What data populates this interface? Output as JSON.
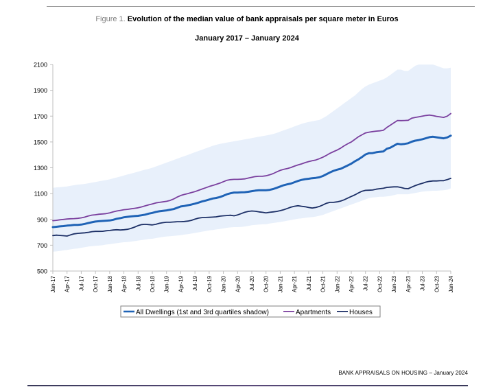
{
  "figure": {
    "prefix": "Figure 1.",
    "title": "Evolution of the median value of bank appraisals per square meter in Euros",
    "subtitle": "January 2017 – January 2024"
  },
  "footer": "BANK APPRAISALS ON HOUSING – January 2024",
  "colors": {
    "all_dwellings": "#1f63b6",
    "apartments": "#7a3f9e",
    "houses": "#1c2f66",
    "quartile_band": "#e8f0fb",
    "axis": "#bfbfbf"
  },
  "chart_data": {
    "type": "line",
    "ylim": [
      500,
      2100
    ],
    "yticks": [
      500,
      700,
      900,
      1100,
      1300,
      1500,
      1700,
      1900,
      2100
    ],
    "x_tick_labels": [
      "Jan-17",
      "Apr-17",
      "Jul-17",
      "Oct-17",
      "Jan-18",
      "Apr-18",
      "Jul-18",
      "Oct-18",
      "Jan-19",
      "Apr-19",
      "Jul-19",
      "Oct-19",
      "Jan-20",
      "Apr-20",
      "Jul-20",
      "Oct-20",
      "Jan-21",
      "Apr-21",
      "Jul-21",
      "Oct-21",
      "Jan-22",
      "Apr-22",
      "Jul-22",
      "Oct-22",
      "Jan-23",
      "Apr-23",
      "Jul-23",
      "Oct-23",
      "Jan-24"
    ],
    "legend_position": "bottom",
    "grid": false,
    "series": [
      {
        "name": "All Dwellings (1st and 3rd quartiles shadow)",
        "color_key": "all_dwellings",
        "values": [
          840,
          843,
          846,
          848,
          852,
          854,
          857,
          858,
          860,
          865,
          872,
          878,
          883,
          886,
          888,
          890,
          892,
          897,
          905,
          910,
          916,
          920,
          923,
          926,
          928,
          932,
          937,
          945,
          950,
          958,
          963,
          966,
          970,
          975,
          980,
          990,
          1000,
          1004,
          1010,
          1015,
          1022,
          1030,
          1039,
          1046,
          1054,
          1062,
          1066,
          1073,
          1083,
          1095,
          1102,
          1108,
          1108,
          1110,
          1111,
          1114,
          1119,
          1123,
          1126,
          1126,
          1126,
          1129,
          1135,
          1145,
          1155,
          1165,
          1172,
          1178,
          1188,
          1198,
          1206,
          1212,
          1215,
          1219,
          1222,
          1226,
          1236,
          1250,
          1264,
          1276,
          1285,
          1292,
          1305,
          1318,
          1332,
          1350,
          1365,
          1383,
          1403,
          1413,
          1414,
          1420,
          1424,
          1426,
          1447,
          1456,
          1471,
          1486,
          1482,
          1485,
          1490,
          1502,
          1510,
          1515,
          1521,
          1529,
          1537,
          1540,
          1536,
          1532,
          1528,
          1535,
          1549
        ]
      },
      {
        "name": "Apartments",
        "color_key": "apartments",
        "values": [
          890,
          893,
          897,
          900,
          903,
          905,
          906,
          908,
          912,
          918,
          927,
          933,
          936,
          940,
          942,
          945,
          950,
          958,
          965,
          970,
          975,
          978,
          982,
          986,
          990,
          997,
          1005,
          1013,
          1020,
          1028,
          1032,
          1036,
          1040,
          1047,
          1058,
          1073,
          1085,
          1093,
          1100,
          1108,
          1115,
          1125,
          1135,
          1145,
          1155,
          1163,
          1172,
          1181,
          1192,
          1203,
          1208,
          1210,
          1210,
          1212,
          1214,
          1220,
          1226,
          1232,
          1234,
          1234,
          1238,
          1245,
          1255,
          1268,
          1280,
          1288,
          1294,
          1302,
          1313,
          1322,
          1330,
          1340,
          1348,
          1354,
          1360,
          1370,
          1382,
          1396,
          1412,
          1425,
          1437,
          1452,
          1470,
          1486,
          1500,
          1520,
          1540,
          1555,
          1570,
          1576,
          1580,
          1584,
          1586,
          1590,
          1612,
          1630,
          1648,
          1666,
          1665,
          1666,
          1668,
          1684,
          1690,
          1695,
          1700,
          1705,
          1708,
          1704,
          1698,
          1694,
          1690,
          1700,
          1720
        ]
      },
      {
        "name": "Houses",
        "color_key": "houses",
        "values": [
          775,
          778,
          776,
          774,
          771,
          780,
          788,
          792,
          794,
          796,
          800,
          805,
          807,
          807,
          808,
          812,
          814,
          818,
          820,
          818,
          820,
          823,
          830,
          840,
          852,
          860,
          862,
          860,
          857,
          862,
          870,
          875,
          878,
          878,
          880,
          882,
          882,
          884,
          887,
          893,
          902,
          910,
          914,
          915,
          916,
          918,
          920,
          925,
          928,
          930,
          932,
          928,
          935,
          945,
          955,
          962,
          965,
          963,
          958,
          955,
          950,
          955,
          958,
          962,
          968,
          975,
          985,
          995,
          1002,
          1006,
          1002,
          998,
          992,
          988,
          992,
          1000,
          1012,
          1025,
          1032,
          1032,
          1036,
          1042,
          1052,
          1065,
          1078,
          1090,
          1105,
          1118,
          1125,
          1126,
          1128,
          1134,
          1138,
          1141,
          1148,
          1150,
          1152,
          1152,
          1147,
          1140,
          1138,
          1150,
          1162,
          1172,
          1180,
          1189,
          1195,
          1198,
          1198,
          1200,
          1200,
          1208,
          1218
        ]
      },
      {
        "name": "1st quartile",
        "values": [
          650,
          652,
          655,
          660,
          663,
          668,
          672,
          675,
          680,
          685,
          690,
          693,
          695,
          697,
          700,
          705,
          708,
          712,
          716,
          720,
          723,
          725,
          728,
          732,
          736,
          740,
          744,
          748,
          750,
          755,
          760,
          764,
          768,
          770,
          772,
          775,
          778,
          782,
          786,
          790,
          795,
          800,
          805,
          810,
          815,
          818,
          822,
          826,
          830,
          835,
          838,
          840,
          840,
          842,
          845,
          850,
          855,
          858,
          860,
          862,
          863,
          868,
          872,
          876,
          880,
          885,
          890,
          895,
          900,
          905,
          908,
          912,
          915,
          918,
          922,
          928,
          935,
          945,
          955,
          965,
          975,
          985,
          995,
          1005,
          1015,
          1025,
          1035,
          1045,
          1055,
          1065,
          1070,
          1072,
          1075,
          1075,
          1078,
          1082,
          1088,
          1095,
          1095,
          1095,
          1095,
          1100,
          1105,
          1110,
          1115,
          1118,
          1120,
          1122,
          1122,
          1124,
          1126,
          1130,
          1140
        ]
      },
      {
        "name": "3rd quartile",
        "values": [
          1145,
          1148,
          1150,
          1152,
          1155,
          1160,
          1165,
          1170,
          1172,
          1175,
          1180,
          1185,
          1190,
          1195,
          1200,
          1205,
          1210,
          1218,
          1225,
          1232,
          1240,
          1248,
          1255,
          1262,
          1270,
          1278,
          1285,
          1292,
          1300,
          1310,
          1320,
          1330,
          1340,
          1350,
          1360,
          1370,
          1380,
          1390,
          1400,
          1410,
          1420,
          1430,
          1440,
          1450,
          1460,
          1470,
          1478,
          1485,
          1490,
          1495,
          1500,
          1505,
          1510,
          1515,
          1520,
          1525,
          1530,
          1535,
          1540,
          1545,
          1550,
          1555,
          1562,
          1570,
          1580,
          1590,
          1600,
          1610,
          1620,
          1630,
          1640,
          1648,
          1655,
          1660,
          1665,
          1670,
          1685,
          1700,
          1720,
          1740,
          1760,
          1780,
          1800,
          1820,
          1840,
          1860,
          1885,
          1910,
          1930,
          1945,
          1955,
          1965,
          1975,
          1985,
          2000,
          2020,
          2040,
          2060,
          2060,
          2050,
          2050,
          2070,
          2090,
          2100,
          2100,
          2100,
          2100,
          2100,
          2090,
          2080,
          2070,
          2070,
          2075
        ]
      }
    ]
  }
}
